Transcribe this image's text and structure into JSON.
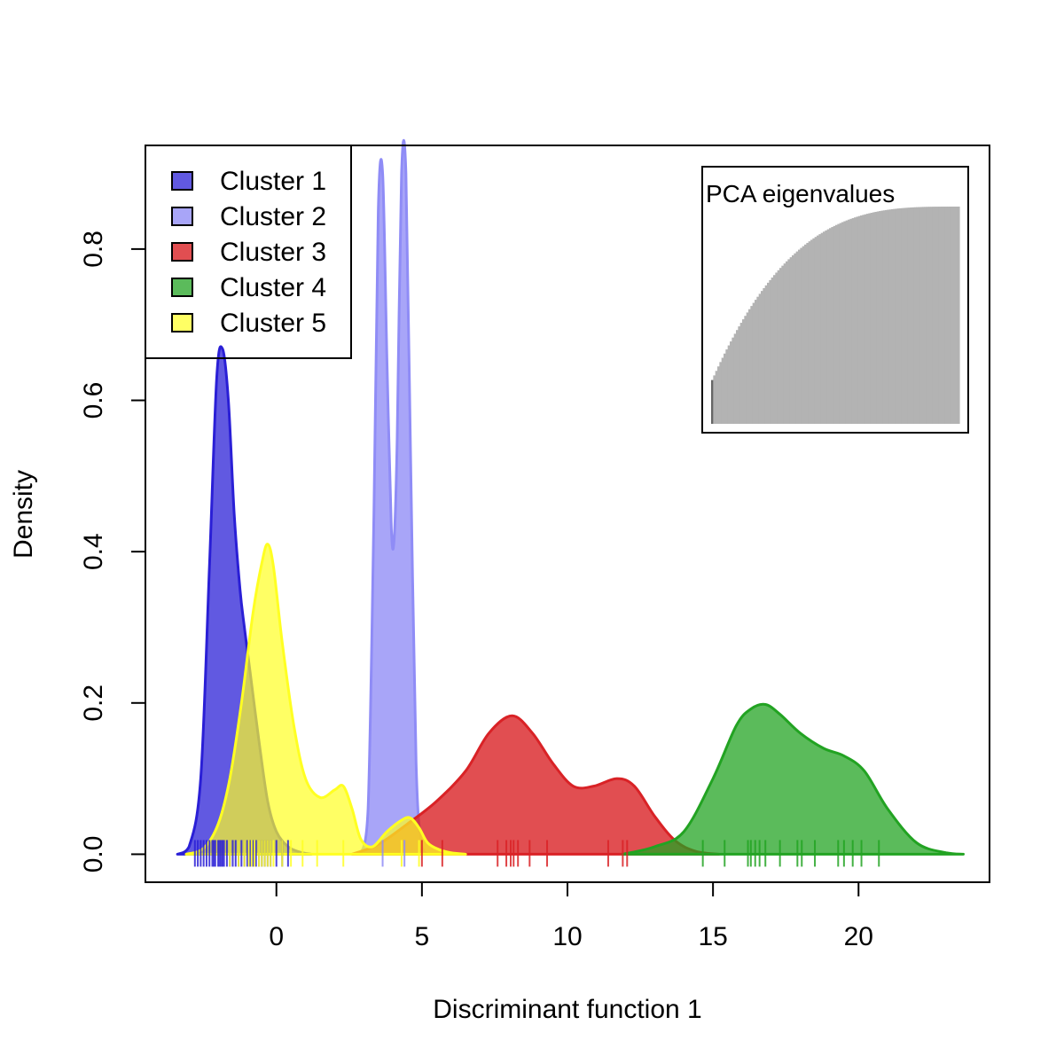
{
  "chart_data": {
    "type": "area",
    "xlabel": "Discriminant function 1",
    "ylabel": "Density",
    "xlim": [
      -4.5,
      24.5
    ],
    "ylim": [
      -0.037,
      0.937
    ],
    "x_ticks": [
      0,
      5,
      10,
      15,
      20
    ],
    "x_tick_labels": [
      "0",
      "5",
      "10",
      "15",
      "20"
    ],
    "y_ticks": [
      0.0,
      0.2,
      0.4,
      0.6,
      0.8
    ],
    "y_tick_labels": [
      "0.0",
      "0.2",
      "0.4",
      "0.6",
      "0.8"
    ],
    "legend_position": "top-left",
    "series": [
      {
        "name": "Cluster 1",
        "color": "#2a1fd6",
        "fill_opacity": 0.74,
        "density_x": [
          -3.4,
          -3.0,
          -2.6,
          -2.3,
          -2.05,
          -1.85,
          -1.65,
          -1.45,
          -1.25,
          -1.1,
          -0.9,
          -0.6,
          -0.3,
          0.0,
          0.4,
          0.8,
          1.2
        ],
        "density_y": [
          0.0,
          0.01,
          0.1,
          0.38,
          0.63,
          0.668,
          0.6,
          0.45,
          0.35,
          0.3,
          0.24,
          0.15,
          0.07,
          0.03,
          0.01,
          0.003,
          0.0
        ],
        "rug": [
          -2.8,
          -2.7,
          -2.6,
          -2.5,
          -2.4,
          -2.3,
          -2.2,
          -2.15,
          -2.1,
          -2.0,
          -1.95,
          -1.9,
          -1.85,
          -1.8,
          -1.7,
          -1.6,
          -1.5,
          -1.4,
          -1.3,
          -1.2,
          -1.1,
          -1.0,
          -0.9,
          -0.8,
          -0.7,
          -0.6,
          -0.5,
          -0.4,
          -0.3,
          -0.2,
          0.0,
          0.2,
          0.4
        ]
      },
      {
        "name": "Cluster 2",
        "color": "#8f8cf6",
        "fill_opacity": 0.78,
        "density_x": [
          2.9,
          3.15,
          3.35,
          3.5,
          3.65,
          3.8,
          3.95,
          4.05,
          4.15,
          4.3,
          4.45,
          4.6,
          4.8,
          5.0,
          5.2
        ],
        "density_y": [
          0.0,
          0.06,
          0.45,
          0.85,
          0.9,
          0.65,
          0.43,
          0.42,
          0.55,
          0.9,
          0.9,
          0.55,
          0.12,
          0.01,
          0.0
        ],
        "rug": [
          3.65,
          4.4
        ]
      },
      {
        "name": "Cluster 3",
        "color": "#d92226",
        "fill_opacity": 0.8,
        "density_x": [
          2.6,
          3.5,
          4.5,
          5.5,
          6.5,
          7.3,
          8.1,
          8.8,
          9.5,
          10.2,
          10.9,
          11.7,
          12.3,
          13.0,
          13.7,
          14.4,
          15.2
        ],
        "density_y": [
          0.0,
          0.013,
          0.04,
          0.07,
          0.11,
          0.16,
          0.183,
          0.16,
          0.12,
          0.09,
          0.09,
          0.1,
          0.09,
          0.05,
          0.018,
          0.004,
          0.0
        ],
        "rug": [
          5.0,
          5.7,
          7.6,
          7.9,
          8.05,
          8.15,
          8.3,
          8.7,
          9.3,
          11.4,
          11.9,
          12.05
        ]
      },
      {
        "name": "Cluster 4",
        "color": "#22a322",
        "fill_opacity": 0.74,
        "density_x": [
          11.9,
          13.0,
          14.0,
          15.0,
          15.8,
          16.3,
          16.8,
          17.3,
          18.0,
          18.8,
          19.5,
          20.2,
          21.0,
          22.0,
          23.0,
          23.6
        ],
        "density_y": [
          0.0,
          0.01,
          0.03,
          0.1,
          0.17,
          0.192,
          0.198,
          0.185,
          0.16,
          0.14,
          0.13,
          0.11,
          0.06,
          0.015,
          0.002,
          0.0
        ],
        "rug": [
          14.65,
          15.4,
          16.2,
          16.3,
          16.45,
          16.6,
          16.8,
          17.3,
          17.9,
          18.05,
          18.5,
          19.3,
          19.5,
          19.8,
          20.1,
          20.7
        ]
      },
      {
        "name": "Cluster 5",
        "color": "#ffff22",
        "fill_opacity": 0.7,
        "density_x": [
          -3.1,
          -2.5,
          -2.0,
          -1.6,
          -1.2,
          -0.8,
          -0.5,
          -0.3,
          -0.1,
          0.2,
          0.6,
          1.0,
          1.5,
          2.0,
          2.3,
          2.6,
          2.9,
          3.3,
          3.8,
          4.3,
          4.6,
          4.9,
          5.2,
          5.6,
          6.0,
          6.5
        ],
        "density_y": [
          0.0,
          0.008,
          0.04,
          0.1,
          0.2,
          0.32,
          0.385,
          0.41,
          0.38,
          0.28,
          0.17,
          0.1,
          0.075,
          0.085,
          0.09,
          0.06,
          0.02,
          0.01,
          0.03,
          0.045,
          0.048,
          0.035,
          0.015,
          0.006,
          0.002,
          0.0
        ],
        "rug": [
          -1.6,
          -1.3,
          -1.1,
          -0.95,
          -0.85,
          -0.75,
          -0.6,
          -0.5,
          -0.4,
          -0.3,
          -0.2,
          -0.1,
          0.2,
          0.5,
          0.9,
          1.4,
          2.3,
          4.3,
          4.9
        ]
      }
    ],
    "inset": {
      "title": "PCA eigenvalues",
      "color": "#b3b3b3",
      "selected_color": "#666666",
      "n_values": 120,
      "curve": "cumulative"
    }
  }
}
